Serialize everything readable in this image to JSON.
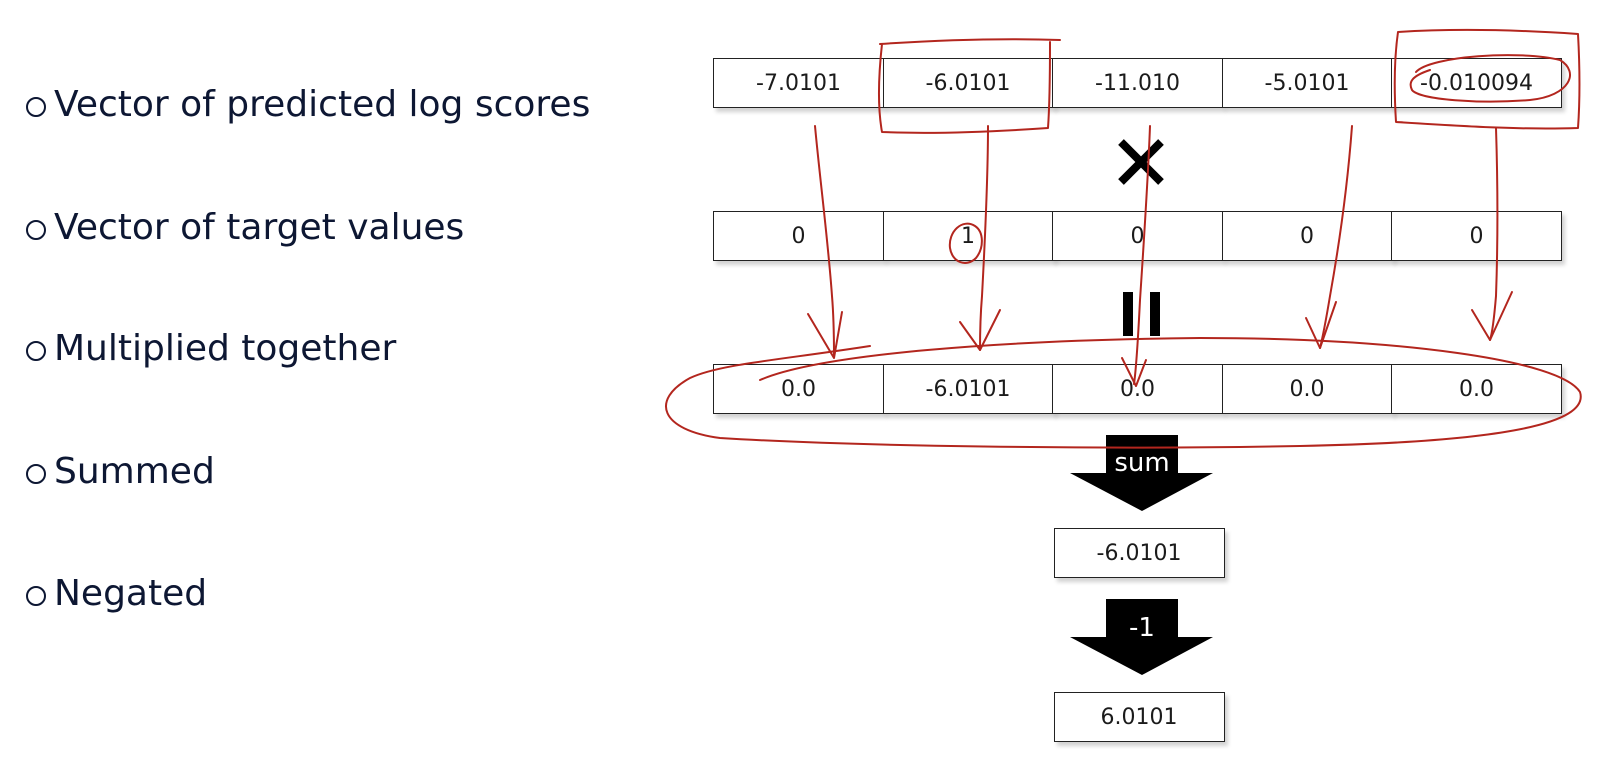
{
  "bullets": [
    {
      "label": "Vector of predicted log scores"
    },
    {
      "label": "Vector of target values"
    },
    {
      "label": "Multiplied together"
    },
    {
      "label": "Summed"
    },
    {
      "label": "Negated"
    }
  ],
  "predicted_scores": [
    "-7.0101",
    "-6.0101",
    "-11.010",
    "-5.0101",
    "-0.010094"
  ],
  "target_values": [
    "0",
    "1",
    "0",
    "0",
    "0"
  ],
  "products": [
    "0.0",
    "-6.0101",
    "0.0",
    "0.0",
    "0.0"
  ],
  "operators": {
    "multiply_icon": "times-icon",
    "equals_icon": "equals-icon"
  },
  "sum": {
    "label": "sum",
    "result": "-6.0101"
  },
  "negate": {
    "label": "-1",
    "result": "6.0101"
  },
  "colors": {
    "annotation": "#b3261e",
    "text": "#0d1733"
  }
}
